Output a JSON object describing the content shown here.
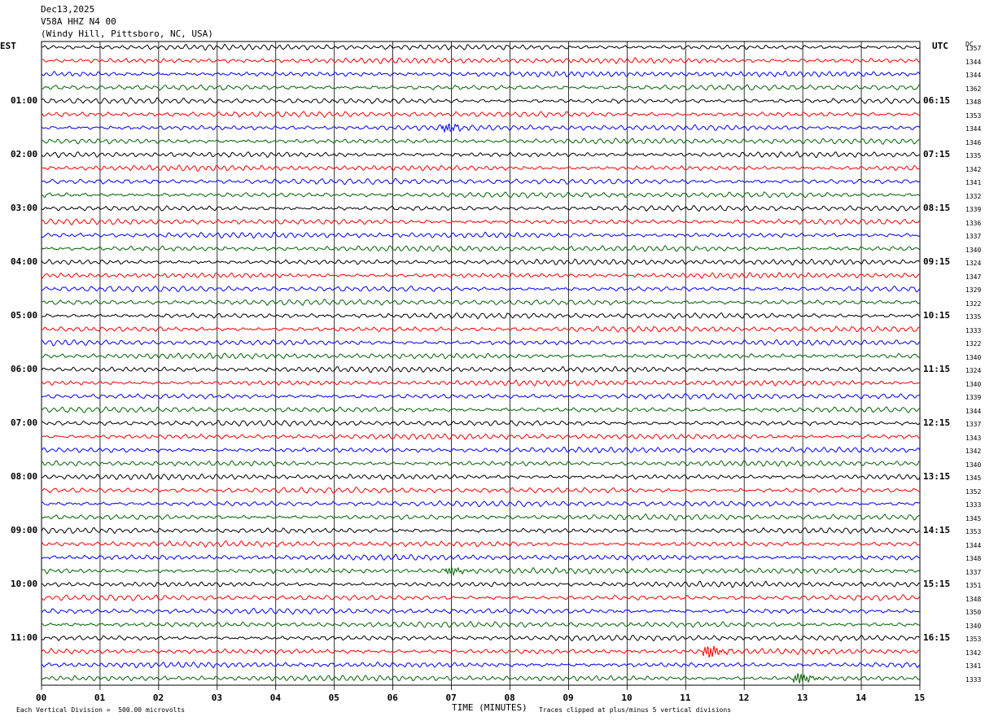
{
  "header": {
    "date": "Dec13,2025",
    "station": "V58A HHZ N4 00",
    "location": "(Windy Hill, Pittsboro, NC, USA)"
  },
  "left_zone_label": "EST",
  "right_zone_label": "UTC",
  "dc_label": "DC",
  "footer": {
    "scale_note": "Each Vertical Division =  500.00 microvolts",
    "xlabel": "TIME (MINUTES)",
    "clip_note": "Traces clipped at plus/minus 5 vertical divisions"
  },
  "colors": {
    "cycle": [
      "#000000",
      "#ff0000",
      "#0000ff",
      "#006400"
    ],
    "grid": "#000000"
  },
  "chart_data": {
    "type": "line",
    "description_of_marks": "helicorder seismogram, 48 traces of 15 minutes each",
    "xlabel": "TIME (MINUTES)",
    "x_ticks": [
      "00",
      "01",
      "02",
      "03",
      "04",
      "05",
      "06",
      "07",
      "08",
      "09",
      "10",
      "11",
      "12",
      "13",
      "14",
      "15"
    ],
    "xlim": [
      0,
      15
    ],
    "left_hour_labels": [
      "01:00",
      "02:00",
      "03:00",
      "04:00",
      "05:00",
      "06:00",
      "07:00",
      "08:00",
      "09:00",
      "10:00",
      "11:00"
    ],
    "right_hour_labels": [
      "06:15",
      "07:15",
      "08:15",
      "09:15",
      "10:15",
      "11:15",
      "12:15",
      "13:15",
      "14:15",
      "15:15",
      "16:15"
    ],
    "trace_dc_offsets": [
      "1357",
      "1344",
      "1344",
      "1362",
      "1348",
      "1353",
      "1344",
      "1346",
      "1335",
      "1342",
      "1341",
      "1332",
      "1339",
      "1336",
      "1337",
      "1340",
      "1324",
      "1347",
      "1329",
      "1322",
      "1335",
      "1333",
      "1322",
      "1340",
      "1324",
      "1340",
      "1339",
      "1344",
      "1337",
      "1343",
      "1342",
      "1340",
      "1345",
      "1352",
      "1333",
      "1345",
      "1353",
      "1344",
      "1348",
      "1337",
      "1351",
      "1348",
      "1350",
      "1340",
      "1353",
      "1342",
      "1341",
      "1333"
    ],
    "events": [
      {
        "trace": 45,
        "minute": 11.4,
        "amplitude": 2.6
      },
      {
        "trace": 47,
        "minute": 12.95,
        "amplitude": 2.2
      },
      {
        "trace": 39,
        "minute": 7.0,
        "amplitude": 1.6
      },
      {
        "trace": 6,
        "minute": 6.95,
        "amplitude": 1.6
      }
    ]
  }
}
